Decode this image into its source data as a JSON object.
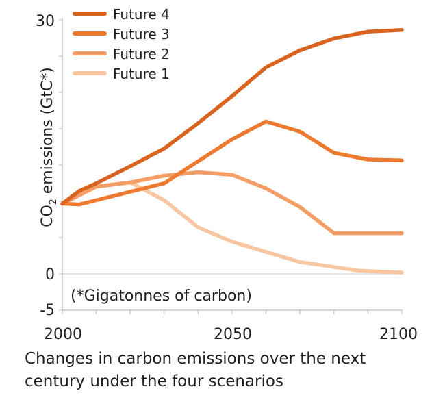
{
  "chart_data": {
    "type": "line",
    "title": "",
    "xlabel": "",
    "ylabel": "CO2 emissions (GtC*)",
    "ylabel_parts": {
      "pre": "CO",
      "sub": "2",
      "post": " emissions (GtC*)"
    },
    "note": "(*Gigatonnes of carbon)",
    "xlim": [
      2000,
      2100
    ],
    "ylim": [
      -5,
      30
    ],
    "x_tick_labels": [
      "2000",
      "2050",
      "2100"
    ],
    "y_tick_labels": [
      "30",
      "0",
      "-5"
    ],
    "legend_position": "top-left",
    "grid": false,
    "series": [
      {
        "name": "Future 4",
        "color": "#d8641f",
        "x": [
          2000,
          2005,
          2010,
          2020,
          2030,
          2040,
          2050,
          2060,
          2070,
          2080,
          2090,
          2100
        ],
        "y": [
          8.3,
          9.8,
          10.7,
          12.7,
          14.8,
          17.8,
          21.0,
          24.4,
          26.4,
          27.8,
          28.6,
          28.8
        ]
      },
      {
        "name": "Future 3",
        "color": "#ee7a30",
        "x": [
          2000,
          2005,
          2030,
          2050,
          2060,
          2070,
          2080,
          2090,
          2100
        ],
        "y": [
          8.3,
          8.2,
          10.7,
          15.9,
          18.0,
          16.8,
          14.3,
          13.5,
          13.4
        ]
      },
      {
        "name": "Future 2",
        "color": "#f49d65",
        "x": [
          2000,
          2010,
          2020,
          2030,
          2040,
          2050,
          2060,
          2070,
          2080,
          2100
        ],
        "y": [
          8.3,
          10.3,
          10.8,
          11.6,
          12.0,
          11.7,
          10.1,
          7.9,
          4.8,
          4.8
        ]
      },
      {
        "name": "Future 1",
        "color": "#f8c6a0",
        "x": [
          2000,
          2010,
          2020,
          2030,
          2040,
          2050,
          2070,
          2087,
          2100
        ],
        "y": [
          8.3,
          10.3,
          10.8,
          8.7,
          5.5,
          3.8,
          1.4,
          0.4,
          0.15
        ]
      }
    ]
  },
  "caption": "Changes in carbon emissions over the next century under the four scenarios"
}
